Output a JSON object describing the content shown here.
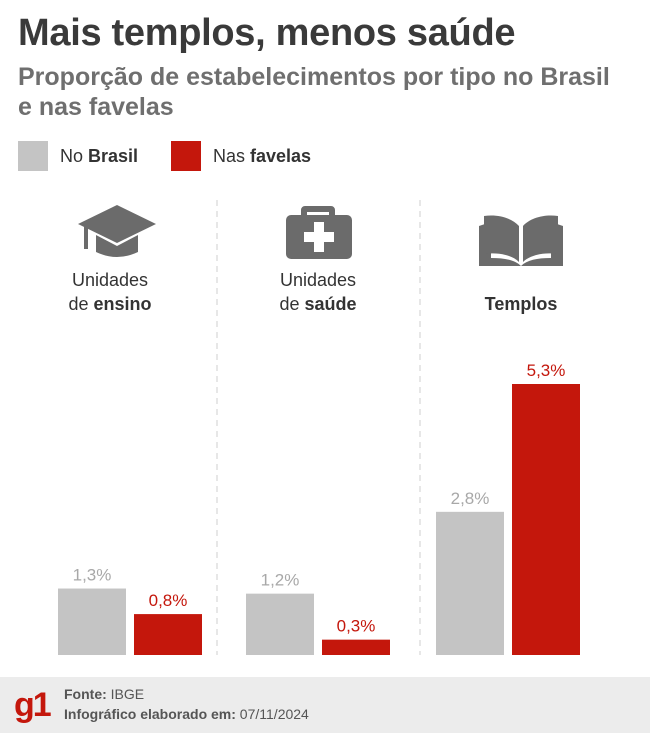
{
  "header": {
    "title": "Mais templos, menos saúde",
    "subtitle": "Proporção de estabelecimentos por tipo no Brasil e nas favelas"
  },
  "legend": [
    {
      "prefix": "No ",
      "bold": "Brasil",
      "color": "#c4c4c4"
    },
    {
      "prefix": "Nas ",
      "bold": "favelas",
      "color": "#c4170c"
    }
  ],
  "chart_data": {
    "type": "bar",
    "categories": [
      "Unidades de ensino",
      "Unidades de saúde",
      "Templos"
    ],
    "category_labels": [
      {
        "line1": "Unidades",
        "line2_prefix": "de ",
        "line2_bold": "ensino",
        "icon": "graduation-cap-icon"
      },
      {
        "line1": "Unidades",
        "line2_prefix": "de ",
        "line2_bold": "saúde",
        "icon": "medical-kit-icon"
      },
      {
        "line1": "",
        "line2_prefix": "",
        "line2_bold": "Templos",
        "icon": "open-book-icon"
      }
    ],
    "series": [
      {
        "name": "No Brasil",
        "values": [
          1.3,
          1.2,
          2.8
        ],
        "labels": [
          "1,3%",
          "1,2%",
          "2,8%"
        ],
        "color": "#c4c4c4",
        "label_color": "#a8a8a8"
      },
      {
        "name": "Nas favelas",
        "values": [
          0.8,
          0.3,
          5.3
        ],
        "labels": [
          "0,8%",
          "0,3%",
          "5,3%"
        ],
        "color": "#c4170c",
        "label_color": "#c4170c"
      }
    ],
    "ylim": [
      0,
      5.3
    ],
    "grid": false,
    "legend_position": "top-left"
  },
  "footer": {
    "logo": "g1",
    "source_label": "Fonte:",
    "source_value": " IBGE",
    "credit_label": "Infográfico elaborado em:",
    "credit_value": " 07/11/2024"
  }
}
